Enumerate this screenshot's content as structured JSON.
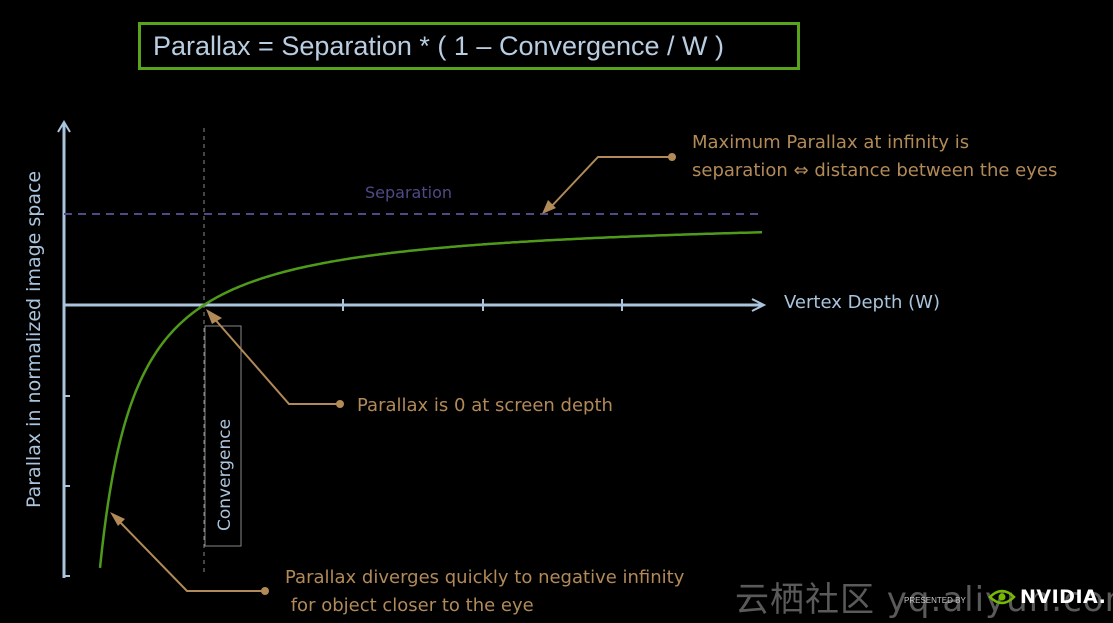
{
  "title": {
    "formula": "Parallax = Separation * ( 1 – Convergence / W )"
  },
  "axes": {
    "y_label": "Parallax in normalized image space",
    "x_label": "Vertex Depth (W)"
  },
  "labels": {
    "separation": "Separation",
    "convergence": "Convergence"
  },
  "annotations": {
    "max_parallax_line1": "Maximum Parallax at infinity is",
    "max_parallax_line2": "separation ⇔ distance between the eyes",
    "zero_parallax": "Parallax is 0 at screen depth",
    "diverge_line1": "Parallax diverges quickly to negative infinity",
    "diverge_line2": " for object closer to the eye"
  },
  "footer": {
    "watermark": "云栖社区 yq.aliyun.com",
    "presented_by": "PRESENTED BY",
    "brand": "NVIDIA."
  },
  "colors": {
    "background": "#000000",
    "title_text": "#b8cde0",
    "title_border": "#5aa31c",
    "axis": "#a9c4dc",
    "curve": "#4f9a1a",
    "separation_line": "#4f4a86",
    "annotation": "#b28a58",
    "convergence_line": "#888888"
  }
}
